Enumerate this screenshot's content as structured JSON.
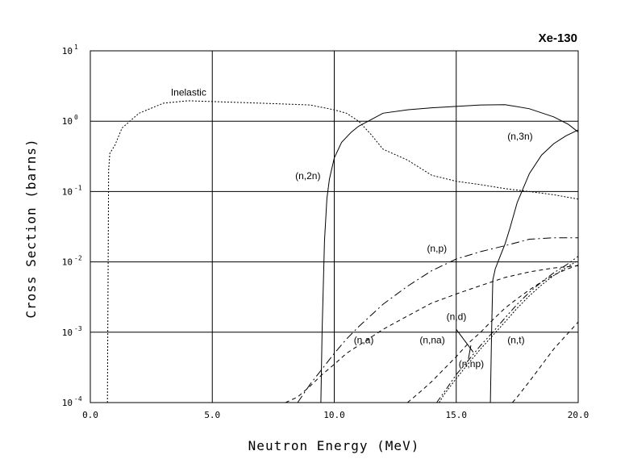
{
  "chart_data": {
    "type": "line",
    "title": "Xe-130",
    "xlabel": "Neutron Energy (MeV)",
    "ylabel": "Cross Section (barns)",
    "xlim": [
      0,
      20
    ],
    "ylim": [
      0.0001,
      10
    ],
    "yscale": "log",
    "grid": true,
    "x_ticks": [
      "0.0",
      "5.0",
      "10.0",
      "15.0",
      "20.0"
    ],
    "y_ticks": [
      {
        "base": "10",
        "exp": "1"
      },
      {
        "base": "10",
        "exp": "0"
      },
      {
        "base": "10",
        "exp": "-1"
      },
      {
        "base": "10",
        "exp": "-2"
      },
      {
        "base": "10",
        "exp": "-3"
      },
      {
        "base": "10",
        "exp": "-4"
      }
    ],
    "series": [
      {
        "name": "Inelastic",
        "dash": "dotted",
        "x": [
          0.7,
          0.75,
          0.8,
          1.0,
          1.3,
          2.0,
          3.0,
          4.0,
          5.0,
          6.0,
          7.0,
          8.0,
          9.0,
          10.0,
          10.5,
          11.0,
          11.5,
          12.0,
          13.0,
          14.0,
          15.0,
          16.0,
          17.0,
          18.0,
          19.0,
          20.0
        ],
        "y": [
          0.0001,
          0.2,
          0.35,
          0.45,
          0.8,
          1.3,
          1.8,
          1.95,
          1.9,
          1.85,
          1.8,
          1.75,
          1.7,
          1.45,
          1.3,
          1.0,
          0.65,
          0.4,
          0.28,
          0.17,
          0.14,
          0.125,
          0.11,
          0.1,
          0.09,
          0.078
        ]
      },
      {
        "name": "(n,2n)",
        "dash": "solid",
        "x": [
          9.45,
          9.5,
          9.6,
          9.7,
          9.8,
          10.0,
          10.3,
          10.7,
          11.0,
          11.5,
          12.0,
          13.0,
          14.0,
          15.0,
          16.0,
          17.0,
          18.0,
          19.0,
          19.6,
          20.0
        ],
        "y": [
          0.0001,
          0.001,
          0.02,
          0.08,
          0.15,
          0.3,
          0.5,
          0.7,
          0.85,
          1.05,
          1.3,
          1.45,
          1.55,
          1.62,
          1.7,
          1.72,
          1.5,
          1.15,
          0.9,
          0.7
        ]
      },
      {
        "name": "(n,3n)",
        "dash": "solid",
        "x": [
          16.4,
          16.45,
          16.5,
          16.6,
          16.8,
          17.0,
          17.2,
          17.5,
          18.0,
          18.5,
          19.0,
          19.5,
          20.0
        ],
        "y": [
          0.0001,
          0.001,
          0.0055,
          0.008,
          0.012,
          0.018,
          0.03,
          0.07,
          0.18,
          0.33,
          0.48,
          0.62,
          0.75
        ]
      },
      {
        "name": "(n,p)",
        "dash": "dashdot",
        "x": [
          8.5,
          9.0,
          9.5,
          10.0,
          10.5,
          11.0,
          12.0,
          13.0,
          14.0,
          15.0,
          16.0,
          17.0,
          18.0,
          19.0,
          20.0
        ],
        "y": [
          0.0001,
          0.00018,
          0.0003,
          0.0005,
          0.0008,
          0.0012,
          0.0025,
          0.0045,
          0.0075,
          0.011,
          0.014,
          0.017,
          0.021,
          0.022,
          0.022
        ]
      },
      {
        "name": "(n,a)",
        "dash": "dashed",
        "x": [
          8.0,
          8.5,
          9.0,
          9.5,
          10.0,
          10.5,
          11.0,
          12.0,
          13.0,
          14.0,
          15.0,
          16.0,
          17.0,
          18.0,
          19.0,
          20.0
        ],
        "y": [
          0.0001,
          0.00012,
          0.00017,
          0.00025,
          0.00035,
          0.0005,
          0.00065,
          0.0011,
          0.0017,
          0.0026,
          0.0035,
          0.0046,
          0.006,
          0.0072,
          0.0082,
          0.0088
        ]
      },
      {
        "name": "(n,na)",
        "dash": "dashed",
        "x": [
          13.0,
          13.5,
          14.0,
          14.5,
          15.0,
          15.5,
          16.0,
          16.5,
          17.0,
          17.5,
          18.0,
          18.5,
          19.0,
          19.5,
          20.0
        ],
        "y": [
          0.0001,
          0.00014,
          0.0002,
          0.0003,
          0.00045,
          0.0007,
          0.001,
          0.0015,
          0.0022,
          0.003,
          0.004,
          0.0052,
          0.0065,
          0.0078,
          0.009
        ]
      },
      {
        "name": "(n,d)",
        "dash": "dashdotdot",
        "x": [
          14.2,
          14.5,
          15.0,
          15.5,
          16.0,
          16.5,
          17.0,
          17.5,
          18.0,
          18.5,
          19.0,
          19.5,
          20.0
        ],
        "y": [
          0.0001,
          0.00014,
          0.00025,
          0.0004,
          0.00065,
          0.001,
          0.0016,
          0.0025,
          0.0037,
          0.0052,
          0.007,
          0.009,
          0.012
        ]
      },
      {
        "name": "(n,np)",
        "dash": "dotted",
        "x": [
          14.3,
          14.5,
          15.0,
          15.5,
          16.0,
          16.5,
          17.0,
          17.5,
          18.0,
          18.5,
          19.0,
          19.5,
          20.0
        ],
        "y": [
          0.0001,
          0.00013,
          0.00022,
          0.00036,
          0.00058,
          0.0009,
          0.0014,
          0.0022,
          0.0033,
          0.0047,
          0.0064,
          0.0083,
          0.0105
        ]
      },
      {
        "name": "(n,t)",
        "dash": "dashed",
        "x": [
          17.3,
          17.5,
          18.0,
          18.5,
          19.0,
          19.5,
          20.0
        ],
        "y": [
          0.0001,
          0.00012,
          0.0002,
          0.00034,
          0.00058,
          0.0009,
          0.0014
        ]
      }
    ],
    "labels": [
      {
        "text": "Inelastic",
        "x": 3.3,
        "y": 2.3
      },
      {
        "text": "(n,2n)",
        "x": 8.4,
        "y": 0.15
      },
      {
        "text": "(n,3n)",
        "x": 17.1,
        "y": 0.55
      },
      {
        "text": "(n,p)",
        "x": 13.8,
        "y": 0.014
      },
      {
        "text": "(n,a)",
        "x": 10.8,
        "y": 0.0007
      },
      {
        "text": "(n,na)",
        "x": 13.5,
        "y": 0.0007
      },
      {
        "text": "(n,d)",
        "x": 14.6,
        "y": 0.0015
      },
      {
        "text": "(n,np)",
        "x": 15.1,
        "y": 0.00032
      },
      {
        "text": "(n,t)",
        "x": 17.1,
        "y": 0.0007
      }
    ],
    "leaders": [
      {
        "from": [
          15.0,
          0.0011
        ],
        "to": [
          15.7,
          0.00052
        ]
      },
      {
        "from": [
          15.5,
          0.00042
        ],
        "to": [
          15.6,
          0.00065
        ]
      }
    ]
  }
}
